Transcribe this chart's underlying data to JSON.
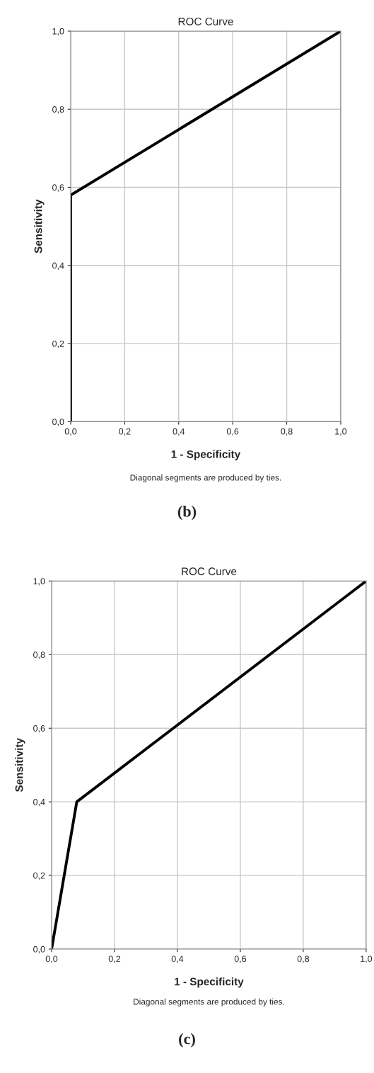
{
  "chart_data": [
    {
      "type": "line",
      "title": "ROC Curve",
      "xlabel": "1 - Specificity",
      "ylabel": "Sensitivity",
      "x": [
        0,
        0,
        1
      ],
      "series": [
        {
          "color": "#000000",
          "values": [
            0,
            0.58,
            1
          ]
        }
      ],
      "xlim": [
        0,
        1
      ],
      "ylim": [
        0,
        1
      ],
      "xticks": [
        {
          "value": 0,
          "label": "0,0"
        },
        {
          "value": 0.2,
          "label": "0,2"
        },
        {
          "value": 0.4,
          "label": "0,4"
        },
        {
          "value": 0.6,
          "label": "0,6"
        },
        {
          "value": 0.8,
          "label": "0,8"
        },
        {
          "value": 1,
          "label": "1,0"
        }
      ],
      "yticks": [
        {
          "value": 0,
          "label": "0,0"
        },
        {
          "value": 0.2,
          "label": "0,2"
        },
        {
          "value": 0.4,
          "label": "0,4"
        },
        {
          "value": 0.6,
          "label": "0,6"
        },
        {
          "value": 0.8,
          "label": "0,8"
        },
        {
          "value": 1,
          "label": "1,0"
        }
      ],
      "grid": true,
      "line_style": "solid",
      "marker": "none",
      "annotations": [
        "Diagonal segments are produced by ties.",
        "(b)"
      ]
    },
    {
      "type": "line",
      "title": "ROC Curve",
      "xlabel": "1 - Specificity",
      "ylabel": "Sensitivity",
      "x": [
        0,
        0.08,
        1
      ],
      "series": [
        {
          "color": "#000000",
          "values": [
            0,
            0.4,
            1
          ]
        }
      ],
      "xlim": [
        0,
        1
      ],
      "ylim": [
        0,
        1
      ],
      "xticks": [
        {
          "value": 0,
          "label": "0,0"
        },
        {
          "value": 0.2,
          "label": "0,2"
        },
        {
          "value": 0.4,
          "label": "0,4"
        },
        {
          "value": 0.6,
          "label": "0,6"
        },
        {
          "value": 0.8,
          "label": "0,8"
        },
        {
          "value": 1,
          "label": "1,0"
        }
      ],
      "yticks": [
        {
          "value": 0,
          "label": "0,0"
        },
        {
          "value": 0.2,
          "label": "0,2"
        },
        {
          "value": 0.4,
          "label": "0,4"
        },
        {
          "value": 0.6,
          "label": "0,6"
        },
        {
          "value": 0.8,
          "label": "0,8"
        },
        {
          "value": 1,
          "label": "1,0"
        }
      ],
      "grid": true,
      "line_style": "solid",
      "marker": "none",
      "annotations": [
        "Diagonal segments are produced by ties.",
        "(c)"
      ]
    }
  ]
}
